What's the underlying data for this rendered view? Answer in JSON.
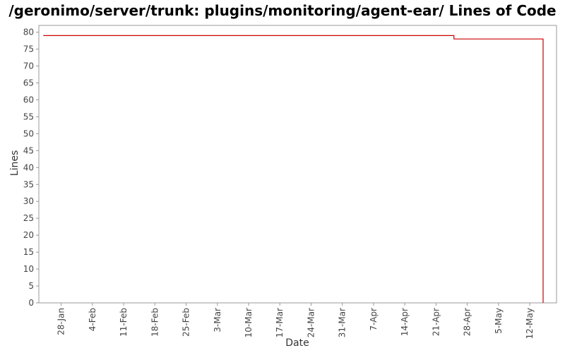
{
  "chart_data": {
    "type": "line",
    "title": "/geronimo/server/trunk: plugins/monitoring/agent-ear/ Lines of Code",
    "xlabel": "Date",
    "ylabel": "Lines",
    "x_ticks": [
      "28-Jan",
      "4-Feb",
      "11-Feb",
      "18-Feb",
      "25-Feb",
      "3-Mar",
      "10-Mar",
      "17-Mar",
      "24-Mar",
      "31-Mar",
      "7-Apr",
      "14-Apr",
      "21-Apr",
      "28-Apr",
      "5-May",
      "12-May"
    ],
    "y_ticks": [
      "0",
      "5",
      "10",
      "15",
      "20",
      "25",
      "30",
      "35",
      "40",
      "45",
      "50",
      "55",
      "60",
      "65",
      "70",
      "75",
      "80"
    ],
    "ylim": [
      0,
      82
    ],
    "xlim": [
      "23-Jan",
      "18-May"
    ],
    "step": true,
    "grid": false,
    "series": [
      {
        "color": "#cc0000",
        "points": [
          {
            "x": "24-Jan",
            "y": 79
          },
          {
            "x": "25-Apr",
            "y": 79
          },
          {
            "x": "25-Apr",
            "y": 78
          },
          {
            "x": "15-May",
            "y": 78
          },
          {
            "x": "15-May",
            "y": 0
          }
        ]
      }
    ]
  }
}
